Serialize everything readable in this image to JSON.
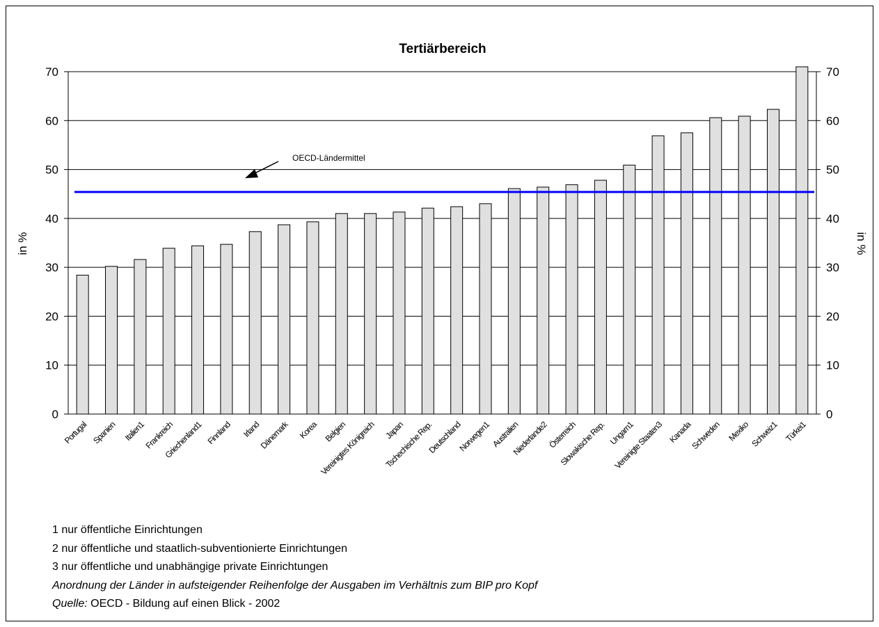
{
  "chart_data": {
    "type": "bar",
    "title": "Tertiärbereich",
    "categories": [
      "Portugal",
      "Spanien",
      "Italien1",
      "Frankreich",
      "Griechenland1",
      "Finnland",
      "Irland",
      "Dänemark",
      "Korea",
      "Belgien",
      "Vereinigtes Königreich",
      "Japan",
      "Tschechische Rep.",
      "Deutschland",
      "Norwegen1",
      "Australien",
      "Niederlande2",
      "Österreich",
      "Slowakische Rep.",
      "Ungarn1",
      "Vereinigte Staaten3",
      "Kanada",
      "Schweden",
      "Mexiko",
      "Schweiz1",
      "Türkei1"
    ],
    "values": [
      28.4,
      30.2,
      31.6,
      33.9,
      34.4,
      34.7,
      37.3,
      38.7,
      39.3,
      41.0,
      41.0,
      41.3,
      42.1,
      42.4,
      43.0,
      46.1,
      46.4,
      46.9,
      47.8,
      50.9,
      56.9,
      57.5,
      60.6,
      60.9,
      62.3,
      71
    ],
    "color": "#e0e0e0",
    "ylabel": "in %",
    "y2label": "in %",
    "ylim": [
      0,
      70
    ],
    "yticks": [
      0,
      10,
      20,
      30,
      40,
      50,
      60,
      70
    ],
    "y2lim": [
      0,
      70
    ],
    "y2ticks": [
      0,
      10,
      20,
      30,
      40,
      50,
      60,
      70
    ],
    "grid": true,
    "reference_line": {
      "label": "OECD-Ländermittel",
      "value": 45.4,
      "color": "#0000ff"
    },
    "notes": [
      "1 nur öffentliche Einrichtungen",
      "2 nur öffentliche und staatlich-subventionierte Einrichtungen",
      "3 nur öffentliche und unabhängige private Einrichtungen",
      "Anordnung der Länder in aufsteigender Reihenfolge der Ausgaben im Verhältnis zum BIP pro Kopf"
    ],
    "source_label": "Quelle:",
    "source": "OECD - Bildung auf einen Blick - 2002"
  }
}
